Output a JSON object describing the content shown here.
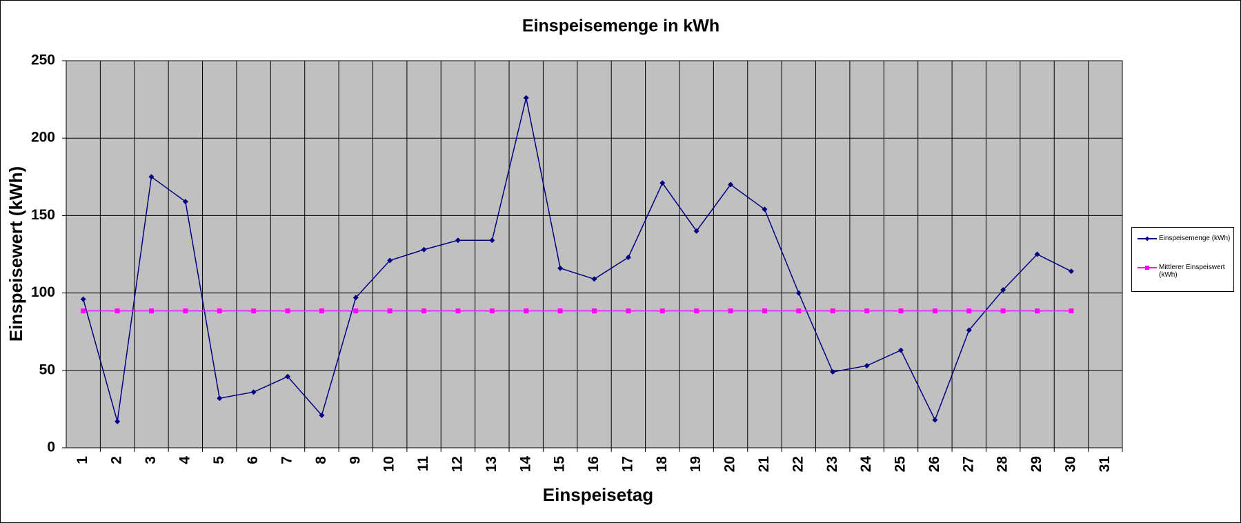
{
  "chart_data": {
    "type": "line",
    "title": "Einspeisemenge in kWh",
    "x_label": "Einspeisetag",
    "y_label": "Einspeisewert (kWh)",
    "categories": [
      "1",
      "2",
      "3",
      "4",
      "5",
      "6",
      "7",
      "8",
      "9",
      "10",
      "11",
      "12",
      "13",
      "14",
      "15",
      "16",
      "17",
      "18",
      "19",
      "20",
      "21",
      "22",
      "23",
      "24",
      "25",
      "26",
      "27",
      "28",
      "29",
      "30",
      "31"
    ],
    "series": [
      {
        "name": "Einspeisemenge (kWh)",
        "color": "#000080",
        "marker": "diamond",
        "values": [
          96,
          17,
          175,
          159,
          32,
          36,
          46,
          21,
          97,
          121,
          128,
          134,
          134,
          226,
          116,
          109,
          123,
          171,
          140,
          170,
          154,
          100,
          49,
          53,
          63,
          18,
          76,
          102,
          125,
          114,
          null
        ]
      },
      {
        "name": "Mittlerer Einspeiswert (kWh)",
        "color": "#ff00ff",
        "marker": "square",
        "values": [
          88.4,
          88.4,
          88.4,
          88.4,
          88.4,
          88.4,
          88.4,
          88.4,
          88.4,
          88.4,
          88.4,
          88.4,
          88.4,
          88.4,
          88.4,
          88.4,
          88.4,
          88.4,
          88.4,
          88.4,
          88.4,
          88.4,
          88.4,
          88.4,
          88.4,
          88.4,
          88.4,
          88.4,
          88.4,
          88.4,
          null
        ]
      }
    ],
    "ylim": [
      0,
      250
    ],
    "yticks": [
      0,
      50,
      100,
      150,
      200,
      250
    ],
    "grid": true,
    "plot_background": "#c0c0c0",
    "legend": "right"
  }
}
